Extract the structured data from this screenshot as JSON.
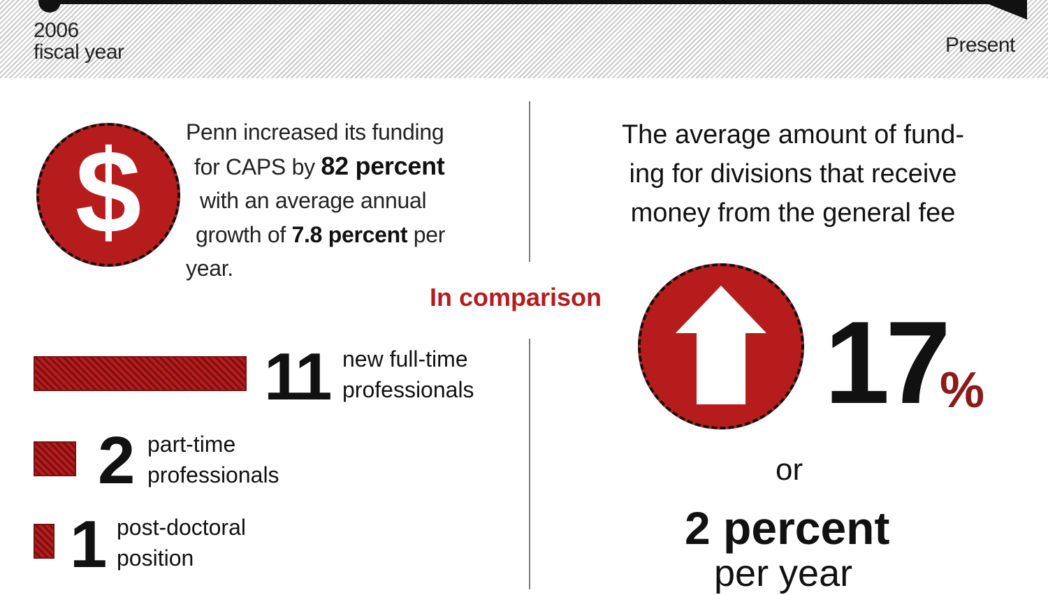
{
  "timeline": {
    "start_label": "2006",
    "start_sublabel": "fiscal year",
    "end_label": "Present"
  },
  "caps_funding": {
    "icon": "dollar-sign-icon",
    "line1": "Penn increased its funding",
    "line2_pre": "for CAPS by ",
    "line2_bold": "82 percent",
    "line3": "with an average annual",
    "line4_pre": "growth of ",
    "line4_mid": "7.8 percent",
    "line4_post": " per",
    "line5": "year."
  },
  "comparison_label": "In comparison",
  "staff": [
    {
      "count": "11",
      "label_line1": "new full-time",
      "label_line2": "professionals",
      "relative_value": 11
    },
    {
      "count": "2",
      "label_line1": "part-time",
      "label_line2": "professionals",
      "relative_value": 2
    },
    {
      "count": "1",
      "label_line1": "post-doctoral",
      "label_line2": "position",
      "relative_value": 1
    }
  ],
  "divisions": {
    "heading_line1": "The average amount of fund-",
    "heading_line2": "ing for divisions that receive",
    "heading_line3": "money from the general fee",
    "icon": "up-arrow-icon",
    "percent_value": "17",
    "percent_sign": "%",
    "or_text": "or",
    "annual_value": "2 percent",
    "annual_unit": "per year"
  },
  "colors": {
    "accent_red": "#b71c1c",
    "dark_red": "#8b1a1a",
    "text": "#111111"
  }
}
